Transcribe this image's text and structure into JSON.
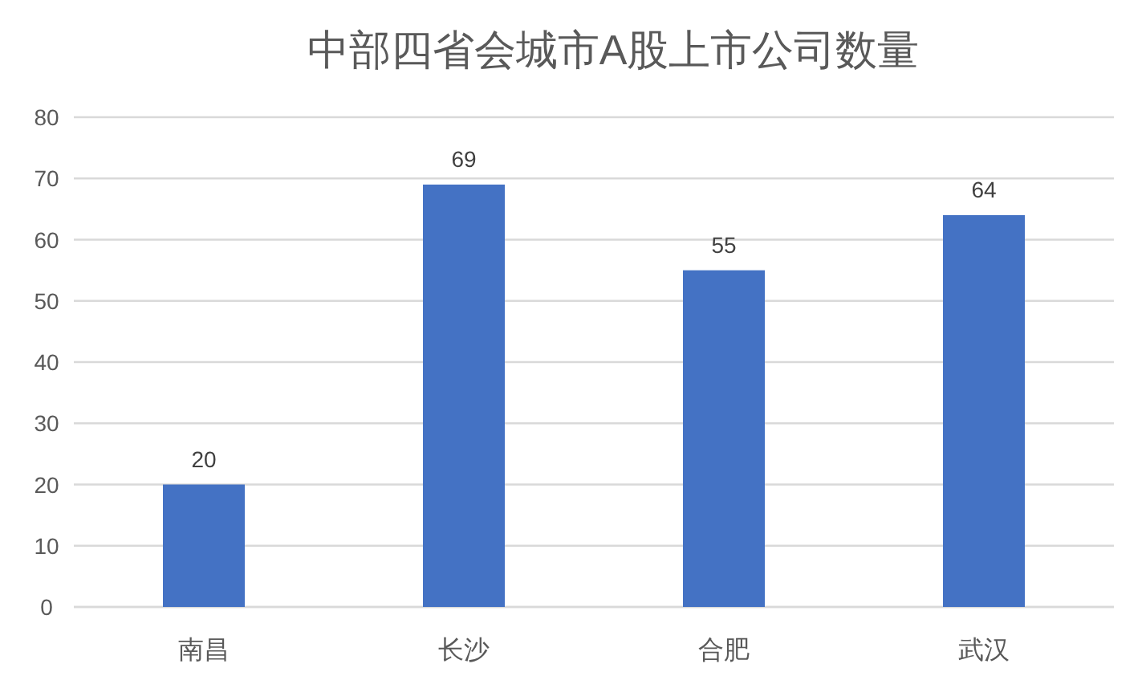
{
  "chart_data": {
    "type": "bar",
    "title": "中部四省会城市A股上市公司数量",
    "categories": [
      "南昌",
      "长沙",
      "合肥",
      "武汉"
    ],
    "values": [
      20,
      69,
      55,
      64
    ],
    "color": "#4472c4",
    "ylim": [
      0,
      80
    ],
    "yticks": [
      0,
      10,
      20,
      30,
      40,
      50,
      60,
      70,
      80
    ],
    "grid": "y",
    "data_labels": true
  }
}
